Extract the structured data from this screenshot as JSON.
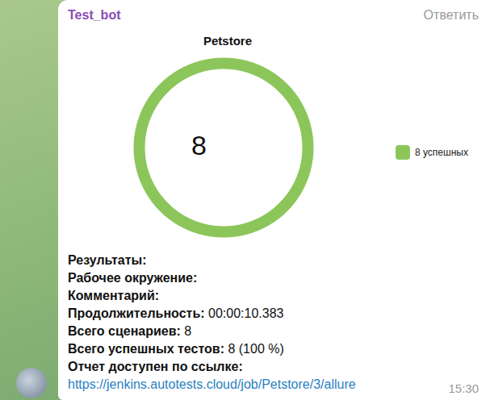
{
  "header": {
    "sender": "Test_bot",
    "action": "Ответить"
  },
  "chart_data": {
    "type": "pie",
    "title": "Petstore",
    "categories": [
      "8 успешных"
    ],
    "values": [
      8
    ],
    "colors": [
      "#8cc65b"
    ],
    "annotation": "8",
    "legend": "right"
  },
  "message": {
    "lines": [
      {
        "label": "Результаты:"
      },
      {
        "label": "Рабочее окружение:"
      },
      {
        "label": "Комментарий:"
      },
      {
        "label": "Продолжительность:",
        "value": "00:00:10.383"
      },
      {
        "label": "Всего сценариев:",
        "value": "8"
      },
      {
        "label": "Всего успешных тестов:",
        "value": "8 (100 %)"
      },
      {
        "label": "Отчет доступен по ссылке:"
      }
    ],
    "link": "https://jenkins.autotests.cloud/job/Petstore/3/allure",
    "time": "15:30"
  }
}
